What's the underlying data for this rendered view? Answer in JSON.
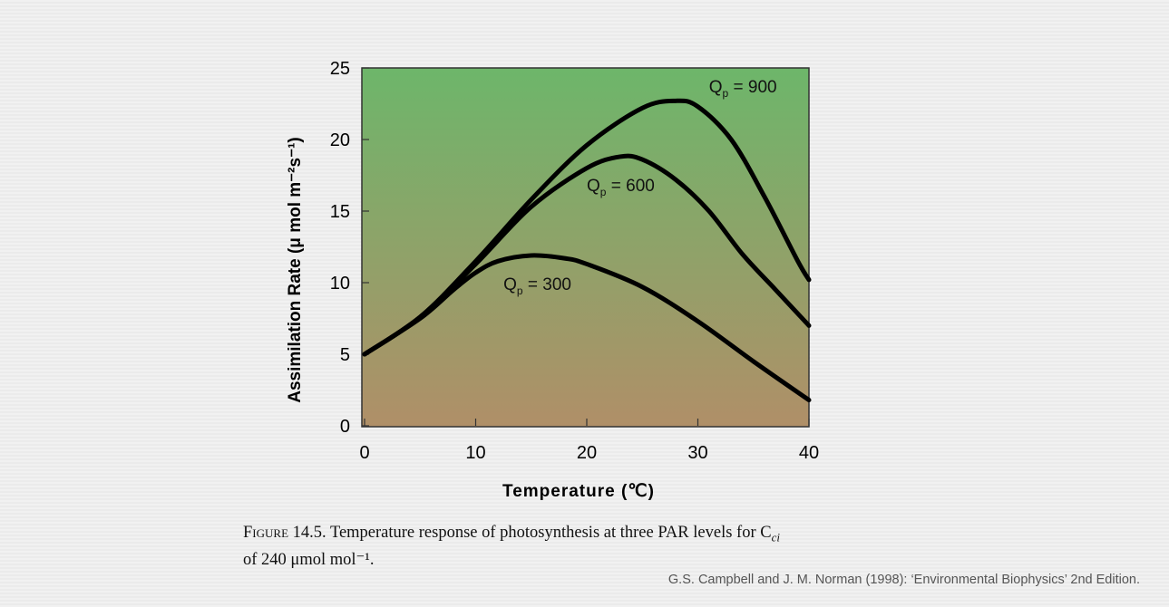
{
  "chart_data": {
    "type": "line",
    "xlabel": "Temperature (℃)",
    "ylabel": "Assimilation Rate (μ mol m⁻²s⁻¹)",
    "xlim": [
      0,
      40
    ],
    "ylim": [
      0,
      25
    ],
    "xticks": [
      "0",
      "10",
      "20",
      "30",
      "40"
    ],
    "yticks": [
      "0",
      "5",
      "10",
      "15",
      "20",
      "25"
    ],
    "grid": false,
    "background_gradient": [
      "#6db66a",
      "#b08f68"
    ],
    "series": [
      {
        "name": "Qp = 900",
        "label_main": "Q",
        "label_sub": "p",
        "label_rest": " = 900",
        "label_at": [
          31,
          23.3
        ],
        "x": [
          0,
          5,
          10,
          15,
          20,
          25,
          28,
          30,
          33,
          36,
          39,
          40
        ],
        "y": [
          5,
          7.6,
          11.5,
          15.8,
          19.6,
          22.2,
          22.7,
          22.3,
          20,
          16,
          11.5,
          10.2
        ]
      },
      {
        "name": "Qp = 600",
        "label_main": "Q",
        "label_sub": "p",
        "label_rest": " = 600",
        "label_at": [
          20,
          16.4
        ],
        "x": [
          0,
          5,
          10,
          15,
          20,
          23,
          25,
          28,
          31,
          34,
          37,
          40
        ],
        "y": [
          5,
          7.6,
          11.3,
          15.3,
          18,
          18.8,
          18.6,
          17.2,
          15,
          12,
          9.5,
          7
        ]
      },
      {
        "name": "Qp = 300",
        "label_main": "Q",
        "label_sub": "p",
        "label_rest": " = 300",
        "label_at": [
          12.5,
          9.5
        ],
        "x": [
          0,
          5,
          8,
          10,
          12,
          15,
          18,
          20,
          25,
          30,
          35,
          40
        ],
        "y": [
          5,
          7.5,
          9.5,
          10.7,
          11.5,
          11.9,
          11.7,
          11.3,
          9.7,
          7.3,
          4.5,
          1.8
        ]
      }
    ]
  },
  "caption": {
    "figure_label": "Figure 14.5.",
    "text": "Temperature response of photosynthesis at three PAR levels for C",
    "sub": "ci",
    "line2": "of 240 μmol mol⁻¹."
  },
  "credit": "G.S. Campbell and J. M. Norman (1998): ‘Environmental Biophysics’ 2nd Edition."
}
